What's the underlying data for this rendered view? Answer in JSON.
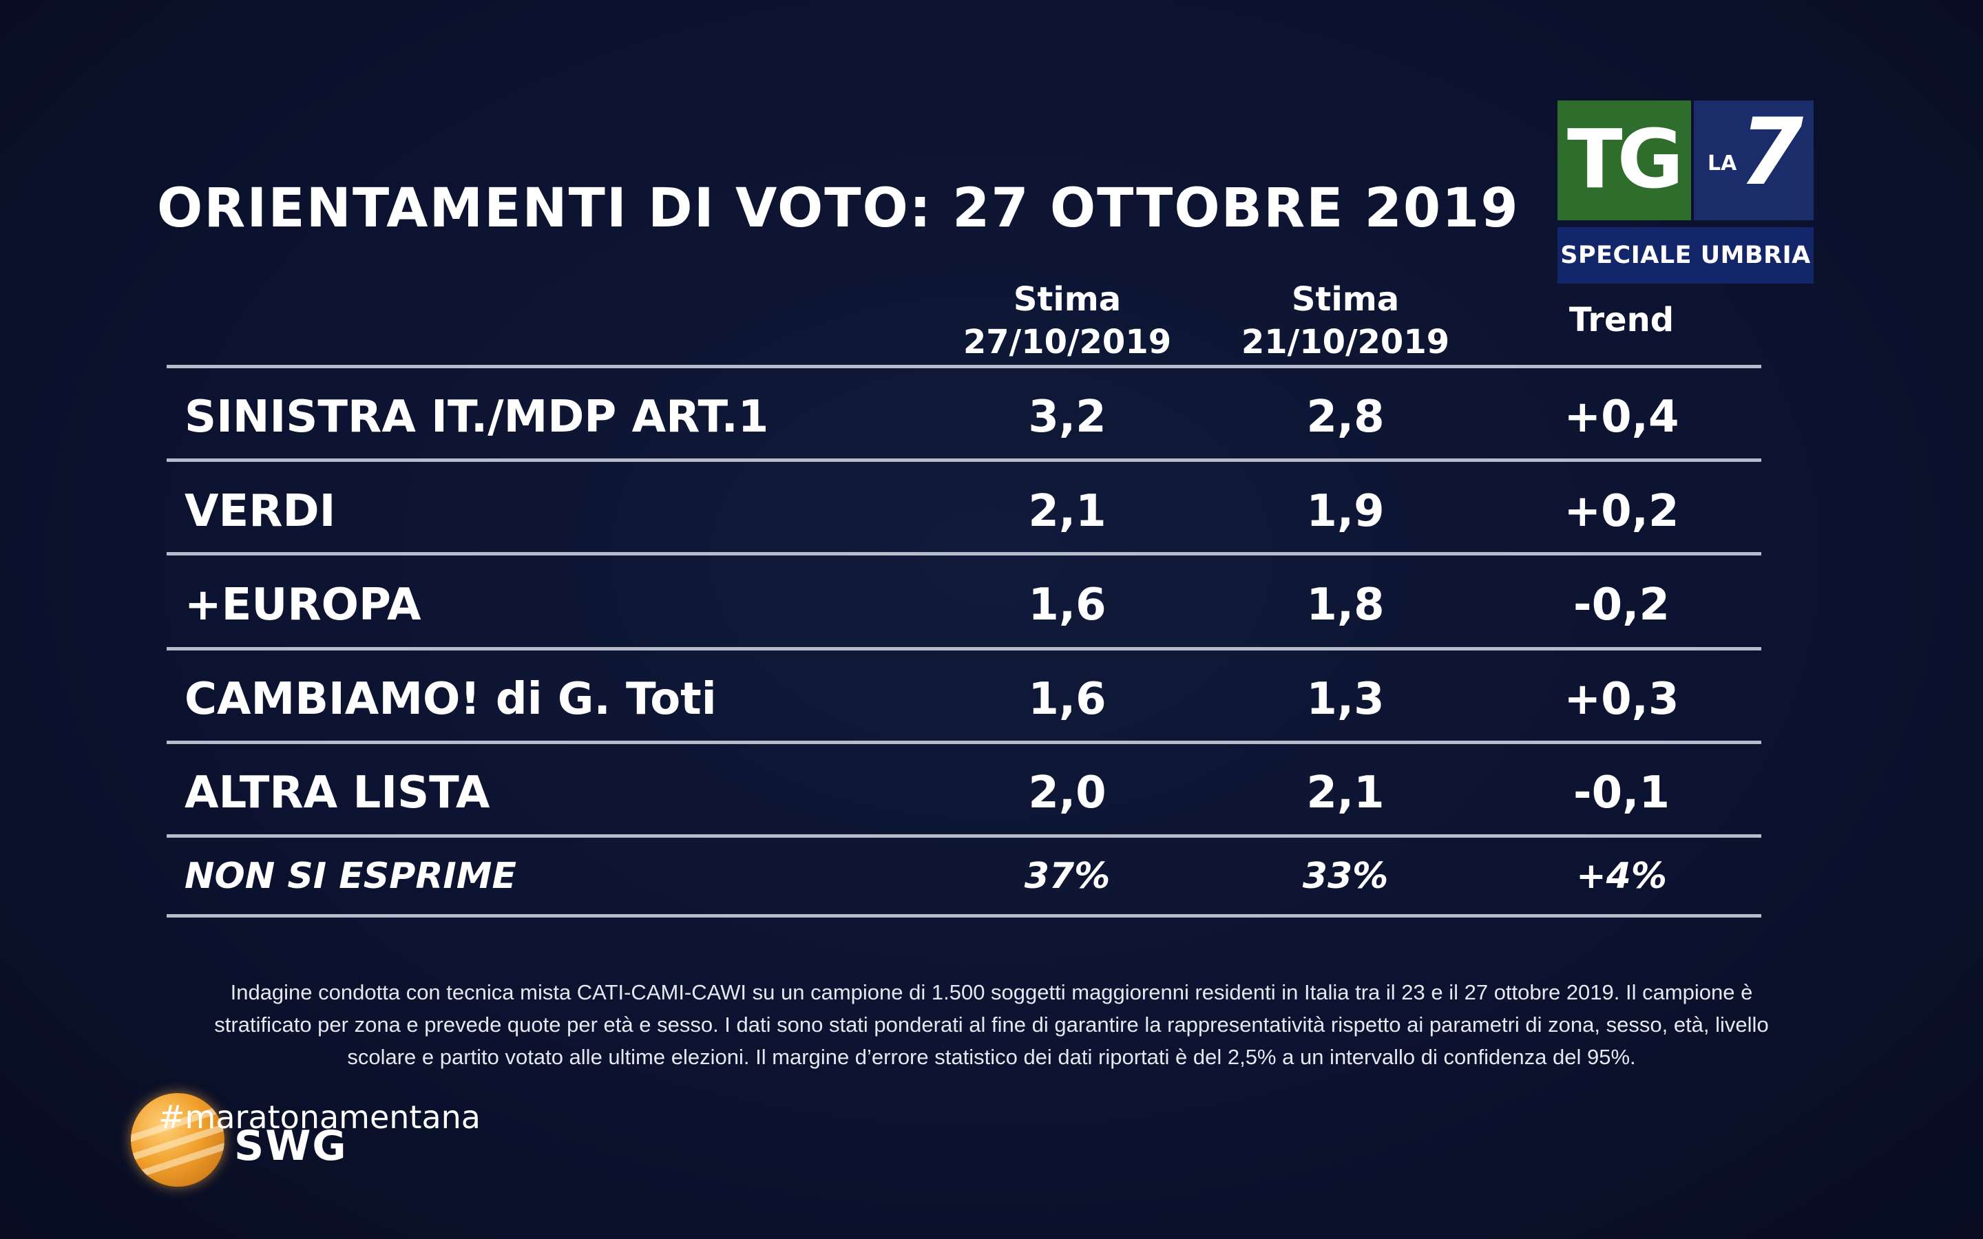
{
  "title": "ORIENTAMENTI DI VOTO: 27 OTTOBRE 2019",
  "logo": {
    "tg": "TG",
    "la": "LA",
    "seven": "7",
    "banner": "SPECIALE UMBRIA"
  },
  "columns": {
    "col1": {
      "line1": "Stima",
      "line2": "27/10/2019"
    },
    "col2": {
      "line1": "Stima",
      "line2": "21/10/2019"
    },
    "col3": {
      "line1": "Trend"
    }
  },
  "rows": [
    {
      "name": "SINISTRA IT./MDP ART.1",
      "v1": "3,2",
      "v2": "2,8",
      "trend": "+0,4"
    },
    {
      "name": "VERDI",
      "v1": "2,1",
      "v2": "1,9",
      "trend": "+0,2"
    },
    {
      "name": "+EUROPA",
      "v1": "1,6",
      "v2": "1,8",
      "trend": "-0,2"
    },
    {
      "name": "CAMBIAMO! di G. Toti",
      "v1": "1,6",
      "v2": "1,3",
      "trend": "+0,3"
    },
    {
      "name": "ALTRA LISTA",
      "v1": "2,0",
      "v2": "2,1",
      "trend": "-0,1"
    },
    {
      "name": "NON SI ESPRIME",
      "v1": "37%",
      "v2": "33%",
      "trend": "+4%"
    }
  ],
  "footnote": {
    "line1": "Indagine condotta con tecnica mista CATI-CAMI-CAWI su un campione di 1.500 soggetti maggiorenni residenti in Italia tra il 23 e il 27 ottobre 2019. Il campione è",
    "line2": "stratificato per zona e prevede quote per età e sesso. I dati sono stati ponderati al fine di garantire la rappresentatività rispetto ai parametri di zona, sesso, età, livello",
    "line3": "scolare e partito votato alle ultime elezioni. Il margine d’errore statistico dei dati riportati è del 2,5% a un intervallo di confidenza del 95%."
  },
  "brand": {
    "hashtag": "#maratonamentana",
    "swg": "SWG"
  },
  "colors": {
    "background": "#0b1128",
    "tg_green": "#2f6d2c",
    "la7_blue": "#1b2c6b",
    "banner_blue": "#14266a",
    "rule": "#b7bccb",
    "globe_orange": "#f0a02c"
  }
}
